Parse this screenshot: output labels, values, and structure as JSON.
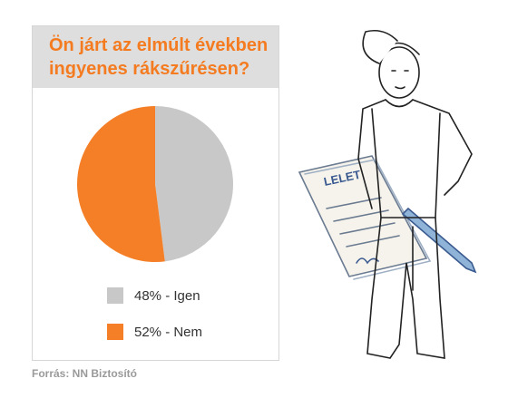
{
  "chart_data": {
    "type": "pie",
    "title": "Ön járt az elmúlt években ingyenes rákszűrésen?",
    "categories": [
      "48% - Igen",
      "52% - Nem"
    ],
    "values": [
      48,
      52
    ],
    "colors": [
      "#c8c8c8",
      "#f47f26"
    ],
    "source": "Forrás: NN Biztosító"
  },
  "illustration": {
    "document_label": "LELET"
  }
}
